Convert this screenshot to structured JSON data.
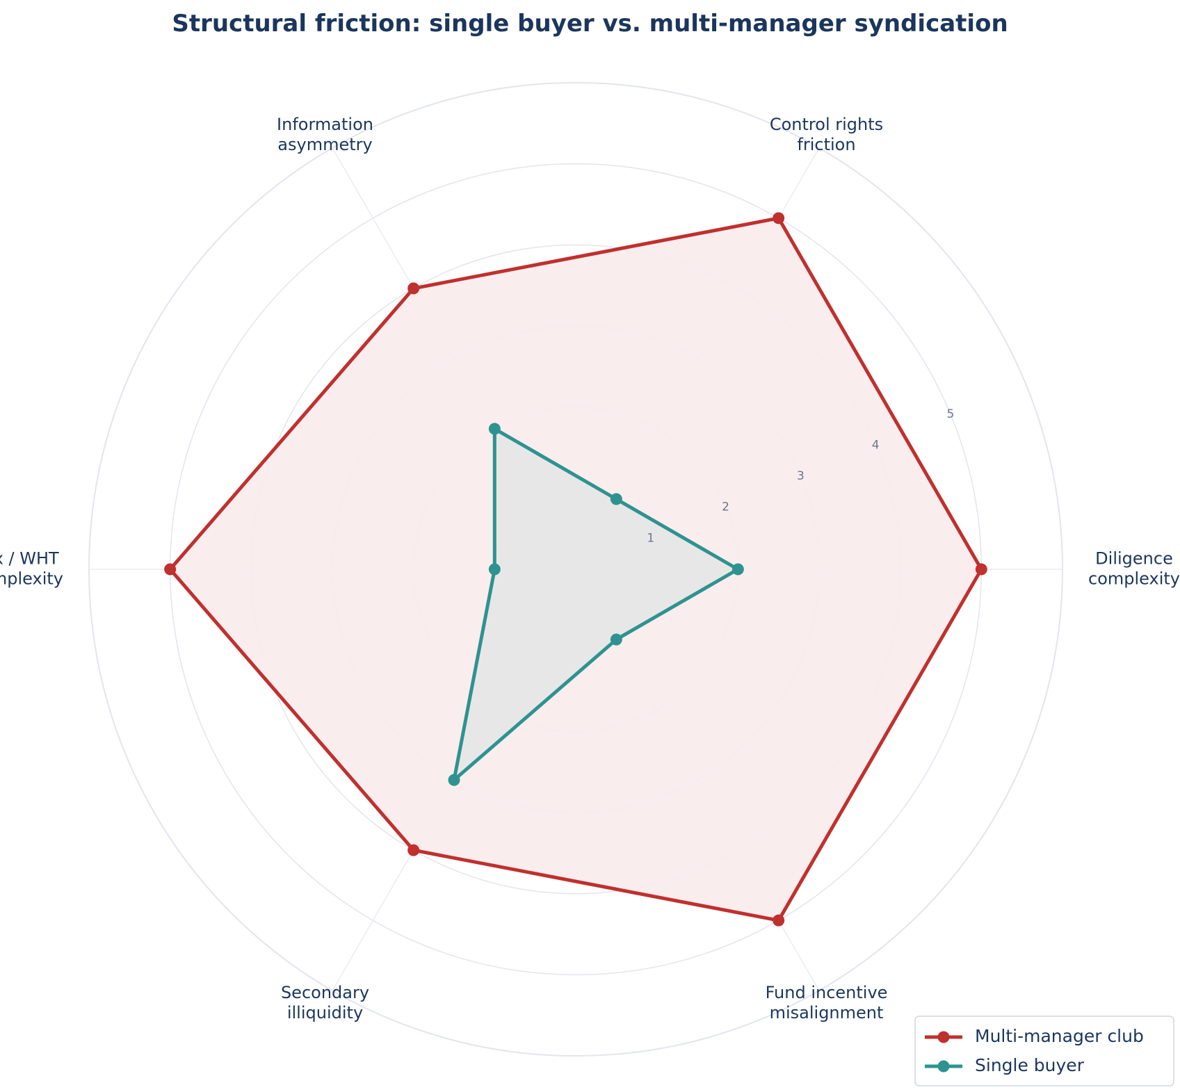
{
  "chart_data": {
    "type": "radar",
    "title": "Structural friction: single buyer vs. multi-manager syndication",
    "axes": [
      [
        "Diligence",
        "complexity"
      ],
      [
        "Control rights",
        "friction"
      ],
      [
        "Information",
        "asymmetry"
      ],
      [
        "Tax / WHT",
        "complexity"
      ],
      [
        "Secondary",
        "illiquidity"
      ],
      [
        "Fund incentive",
        "misalignment"
      ]
    ],
    "radial_ticks": [
      "1",
      "2",
      "3",
      "4",
      "5"
    ],
    "rlim": [
      0,
      6
    ],
    "grid": true,
    "legend_position": "bottom-right",
    "series": [
      {
        "name": "Multi-manager club",
        "values": [
          5,
          5,
          4,
          5,
          4,
          5
        ],
        "color": "#c0302e",
        "fill": "#f9ebec"
      },
      {
        "name": "Single buyer",
        "values": [
          2,
          1,
          2,
          1,
          3,
          1
        ],
        "color": "#2e9390",
        "fill": "#e6e6e6"
      }
    ]
  }
}
